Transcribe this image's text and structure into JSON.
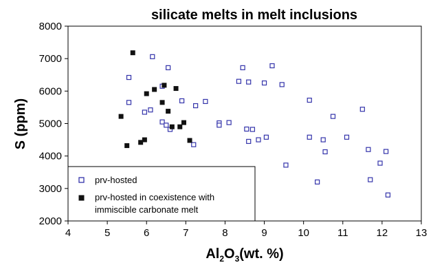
{
  "chart_data": {
    "type": "scatter",
    "title": "silicate melts in melt inclusions",
    "xlabel": {
      "main": "Al",
      "sub1": "2",
      "mid": "O",
      "sub2": "3",
      "tail": "(wt. %)"
    },
    "ylabel": "S (ppm)",
    "xlim": [
      4,
      13
    ],
    "ylim": [
      2000,
      8000
    ],
    "x_ticks": [
      4,
      5,
      6,
      7,
      8,
      9,
      10,
      11,
      12,
      13
    ],
    "y_ticks": [
      2000,
      3000,
      4000,
      5000,
      6000,
      7000,
      8000
    ],
    "grid": false,
    "legend_position": "bottom-left",
    "series": [
      {
        "name": "prv-hosted",
        "marker": "open-square",
        "color": "#3333aa",
        "points": [
          [
            5.55,
            6420
          ],
          [
            5.55,
            5650
          ],
          [
            5.95,
            5350
          ],
          [
            6.1,
            5420
          ],
          [
            6.15,
            7060
          ],
          [
            6.4,
            6150
          ],
          [
            6.4,
            5050
          ],
          [
            6.5,
            4950
          ],
          [
            6.55,
            6720
          ],
          [
            6.6,
            4820
          ],
          [
            6.9,
            5700
          ],
          [
            7.2,
            4350
          ],
          [
            7.25,
            5550
          ],
          [
            7.5,
            5680
          ],
          [
            7.85,
            5020
          ],
          [
            7.85,
            4950
          ],
          [
            8.1,
            5030
          ],
          [
            8.35,
            6300
          ],
          [
            8.45,
            6720
          ],
          [
            8.55,
            4830
          ],
          [
            8.6,
            6280
          ],
          [
            8.6,
            4450
          ],
          [
            8.7,
            4820
          ],
          [
            8.85,
            4500
          ],
          [
            9.0,
            6250
          ],
          [
            9.05,
            4580
          ],
          [
            9.2,
            6780
          ],
          [
            9.45,
            6200
          ],
          [
            9.55,
            3720
          ],
          [
            10.15,
            5720
          ],
          [
            10.15,
            4580
          ],
          [
            10.35,
            3200
          ],
          [
            10.5,
            4500
          ],
          [
            10.55,
            4130
          ],
          [
            10.75,
            5220
          ],
          [
            11.1,
            4580
          ],
          [
            11.5,
            5440
          ],
          [
            11.65,
            4200
          ],
          [
            11.7,
            3270
          ],
          [
            11.95,
            3780
          ],
          [
            12.1,
            4140
          ],
          [
            12.15,
            2800
          ]
        ]
      },
      {
        "name": "prv-hosted in coexistence with immiscible carbonate melt",
        "marker": "filled-square",
        "color": "#111111",
        "points": [
          [
            5.35,
            5220
          ],
          [
            5.5,
            4320
          ],
          [
            5.65,
            7180
          ],
          [
            5.85,
            4420
          ],
          [
            5.95,
            4500
          ],
          [
            6.0,
            5920
          ],
          [
            6.2,
            6050
          ],
          [
            6.4,
            5650
          ],
          [
            6.45,
            6180
          ],
          [
            6.55,
            5380
          ],
          [
            6.65,
            4900
          ],
          [
            6.75,
            6080
          ],
          [
            6.85,
            4900
          ],
          [
            6.95,
            5030
          ],
          [
            7.1,
            4480
          ]
        ]
      }
    ],
    "legend": {
      "entries": [
        {
          "line1": "prv-hosted",
          "line2": ""
        },
        {
          "line1": "prv-hosted in coexistence with",
          "line2": "immiscible carbonate melt"
        }
      ]
    }
  }
}
